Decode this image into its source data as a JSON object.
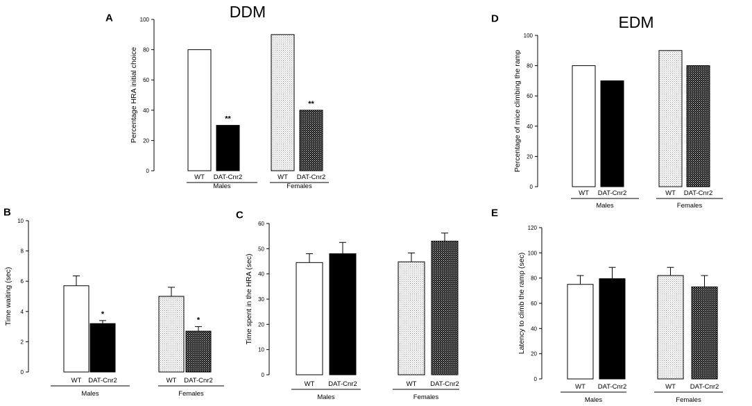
{
  "chart_data": [
    {
      "id": "A",
      "panel_letter": "A",
      "type": "bar",
      "title": "DDM",
      "ylabel": "Percentage HRA initial choice",
      "ylim": [
        0,
        100
      ],
      "yticks": [
        0,
        20,
        40,
        60,
        80,
        100
      ],
      "error_bars": false,
      "bars": [
        {
          "group": "Males",
          "category": "WT",
          "value": 80,
          "fill": "white",
          "sig": ""
        },
        {
          "group": "Males",
          "category": "DAT-Cnr2",
          "value": 30,
          "fill": "black",
          "sig": "**"
        },
        {
          "group": "Females",
          "category": "WT",
          "value": 90,
          "fill": "light-dots",
          "sig": ""
        },
        {
          "group": "Females",
          "category": "DAT-Cnr2",
          "value": 40,
          "fill": "dark-dots",
          "sig": "**"
        }
      ],
      "groups": [
        "Males",
        "Females"
      ]
    },
    {
      "id": "D",
      "panel_letter": "D",
      "type": "bar",
      "title": "EDM",
      "ylabel": "Percentage of mice climbing the ramp",
      "ylim": [
        0,
        100
      ],
      "yticks": [
        0,
        20,
        40,
        60,
        80,
        100
      ],
      "error_bars": false,
      "bars": [
        {
          "group": "Males",
          "category": "WT",
          "value": 80,
          "fill": "white",
          "sig": ""
        },
        {
          "group": "Males",
          "category": "DAT-Cnr2",
          "value": 70,
          "fill": "black",
          "sig": ""
        },
        {
          "group": "Females",
          "category": "WT",
          "value": 90,
          "fill": "light-dots",
          "sig": ""
        },
        {
          "group": "Females",
          "category": "DAT-Cnr2",
          "value": 80,
          "fill": "dark-dots",
          "sig": ""
        }
      ],
      "groups": [
        "Males",
        "Females"
      ]
    },
    {
      "id": "B",
      "panel_letter": "B",
      "type": "bar",
      "title": "",
      "ylabel": "Time waiting (sec)",
      "ylim": [
        0,
        10
      ],
      "yticks": [
        0,
        2,
        4,
        6,
        8,
        10
      ],
      "error_bars": true,
      "bars": [
        {
          "group": "Males",
          "category": "WT",
          "value": 5.7,
          "error": 0.65,
          "fill": "white",
          "sig": ""
        },
        {
          "group": "Males",
          "category": "DAT-Cnr2",
          "value": 3.2,
          "error": 0.2,
          "fill": "black",
          "sig": "*"
        },
        {
          "group": "Females",
          "category": "WT",
          "value": 5.0,
          "error": 0.6,
          "fill": "light-dots",
          "sig": ""
        },
        {
          "group": "Females",
          "category": "DAT-Cnr2",
          "value": 2.7,
          "error": 0.3,
          "fill": "dark-dots",
          "sig": "*"
        }
      ],
      "groups": [
        "Males",
        "Females"
      ]
    },
    {
      "id": "C",
      "panel_letter": "C",
      "type": "bar",
      "title": "",
      "ylabel": "Time spent in the HRA (sec)",
      "ylim": [
        0,
        60
      ],
      "yticks": [
        0,
        10,
        20,
        30,
        40,
        50,
        60
      ],
      "error_bars": true,
      "bars": [
        {
          "group": "Males",
          "category": "WT",
          "value": 44.5,
          "error": 3.5,
          "fill": "white",
          "sig": ""
        },
        {
          "group": "Males",
          "category": "DAT-Cnr2",
          "value": 48,
          "error": 4.5,
          "fill": "black",
          "sig": ""
        },
        {
          "group": "Females",
          "category": "WT",
          "value": 44.8,
          "error": 3.5,
          "fill": "light-dots",
          "sig": ""
        },
        {
          "group": "Females",
          "category": "DAT-Cnr2",
          "value": 53,
          "error": 3.2,
          "fill": "dark-dots",
          "sig": ""
        }
      ],
      "groups": [
        "Males",
        "Females"
      ]
    },
    {
      "id": "E",
      "panel_letter": "E",
      "type": "bar",
      "title": "",
      "ylabel": "Latency to climb the ramp (sec)",
      "ylim": [
        0,
        120
      ],
      "yticks": [
        0,
        20,
        40,
        60,
        80,
        100,
        120
      ],
      "error_bars": true,
      "bars": [
        {
          "group": "Males",
          "category": "WT",
          "value": 75,
          "error": 7,
          "fill": "white",
          "sig": ""
        },
        {
          "group": "Males",
          "category": "DAT-Cnr2",
          "value": 79.5,
          "error": 9,
          "fill": "black",
          "sig": ""
        },
        {
          "group": "Females",
          "category": "WT",
          "value": 82,
          "error": 6.5,
          "fill": "light-dots",
          "sig": ""
        },
        {
          "group": "Females",
          "category": "DAT-Cnr2",
          "value": 73,
          "error": 9,
          "fill": "dark-dots",
          "sig": ""
        }
      ],
      "groups": [
        "Males",
        "Females"
      ]
    }
  ]
}
